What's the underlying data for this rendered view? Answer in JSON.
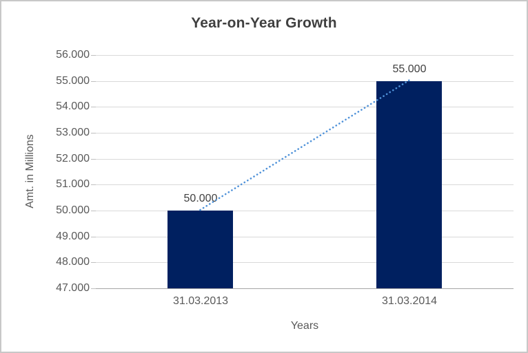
{
  "chart_data": {
    "type": "bar",
    "title": "Year-on-Year Growth",
    "categories": [
      "31.03.2013",
      "31.03.2014"
    ],
    "values": [
      50000,
      55000
    ],
    "value_labels": [
      "50.000",
      "55.000"
    ],
    "xlabel": "Years",
    "ylabel": "Amt. in Millions",
    "ylim": [
      47000,
      56000
    ],
    "y_tick_step": 1000,
    "y_tick_labels": [
      "47.000",
      "48.000",
      "49.000",
      "50.000",
      "51.000",
      "52.000",
      "53.000",
      "54.000",
      "55.000",
      "56.000"
    ],
    "grid": true,
    "legend": "none",
    "trendline": {
      "style": "dotted",
      "from_value": 50000,
      "to_value": 55000
    },
    "colors": {
      "bar": "#002060",
      "trendline": "#4F92D9",
      "gridline": "#D9D9D9",
      "axis_line": "#A6A6A6",
      "tick_mark": "#BFBFBF",
      "axis_text": "#595959",
      "title_text": "#404040",
      "data_label_text": "#404040",
      "border": "#C8C8C8",
      "background": "#FFFFFF"
    }
  }
}
